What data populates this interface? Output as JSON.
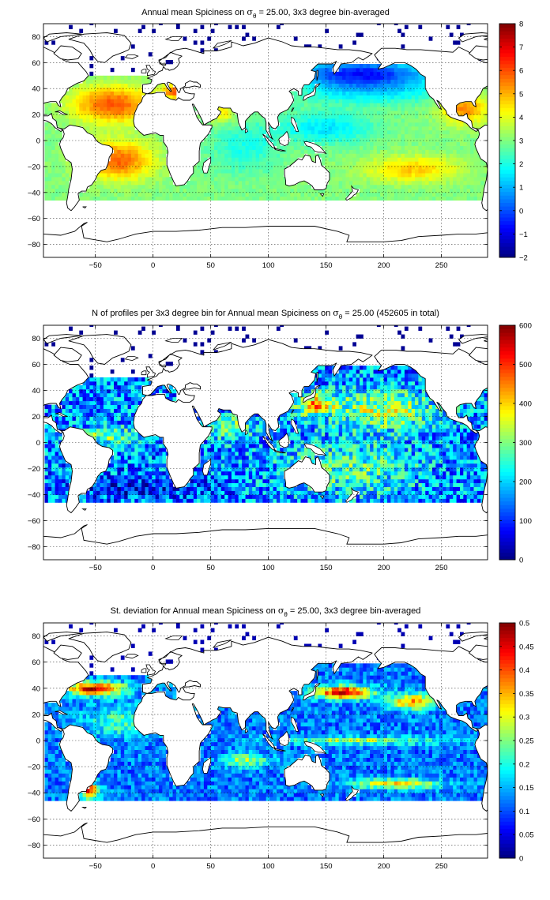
{
  "colormap": "jet",
  "chart_data": [
    {
      "type": "heatmap",
      "title_parts": [
        "Annual mean Spiciness on ",
        "σ",
        "θ",
        " = 25.00, 3x3 degree bin-averaged"
      ],
      "field": "mean",
      "xlim": [
        -95,
        290
      ],
      "ylim": [
        -90,
        90
      ],
      "xticks": [
        -50,
        0,
        50,
        100,
        150,
        200,
        250
      ],
      "yticks": [
        80,
        60,
        40,
        20,
        0,
        -20,
        -40,
        -60,
        -80
      ],
      "grid": true,
      "colorbar": {
        "min": -2,
        "max": 8,
        "ticks": [
          8,
          7,
          6,
          5,
          4,
          3,
          2,
          1,
          0,
          -1,
          -2
        ]
      }
    },
    {
      "type": "heatmap",
      "title_parts": [
        "N of profiles per 3x3 degree bin for Annual mean Spiciness on ",
        "σ",
        "θ",
        " = 25.00 (452605 in total)"
      ],
      "field": "count",
      "total_profiles": 452605,
      "xlim": [
        -95,
        290
      ],
      "ylim": [
        -90,
        90
      ],
      "xticks": [
        -50,
        0,
        50,
        100,
        150,
        200,
        250
      ],
      "yticks": [
        80,
        60,
        40,
        20,
        0,
        -20,
        -40,
        -60,
        -80
      ],
      "grid": true,
      "colorbar": {
        "min": 0,
        "max": 600,
        "ticks": [
          600,
          500,
          400,
          300,
          200,
          100,
          0
        ]
      }
    },
    {
      "type": "heatmap",
      "title_parts": [
        "St. deviation for Annual mean Spiciness on ",
        "σ",
        "θ",
        " = 25.00, 3x3 degree bin-averaged"
      ],
      "field": "std",
      "xlim": [
        -95,
        290
      ],
      "ylim": [
        -90,
        90
      ],
      "xticks": [
        -50,
        0,
        50,
        100,
        150,
        200,
        250
      ],
      "yticks": [
        80,
        60,
        40,
        20,
        0,
        -20,
        -40,
        -60,
        -80
      ],
      "grid": true,
      "colorbar": {
        "min": 0,
        "max": 0.5,
        "ticks": [
          0.5,
          0.45,
          0.4,
          0.35,
          0.3,
          0.25,
          0.2,
          0.15,
          0.1,
          0.05,
          0
        ]
      }
    }
  ]
}
